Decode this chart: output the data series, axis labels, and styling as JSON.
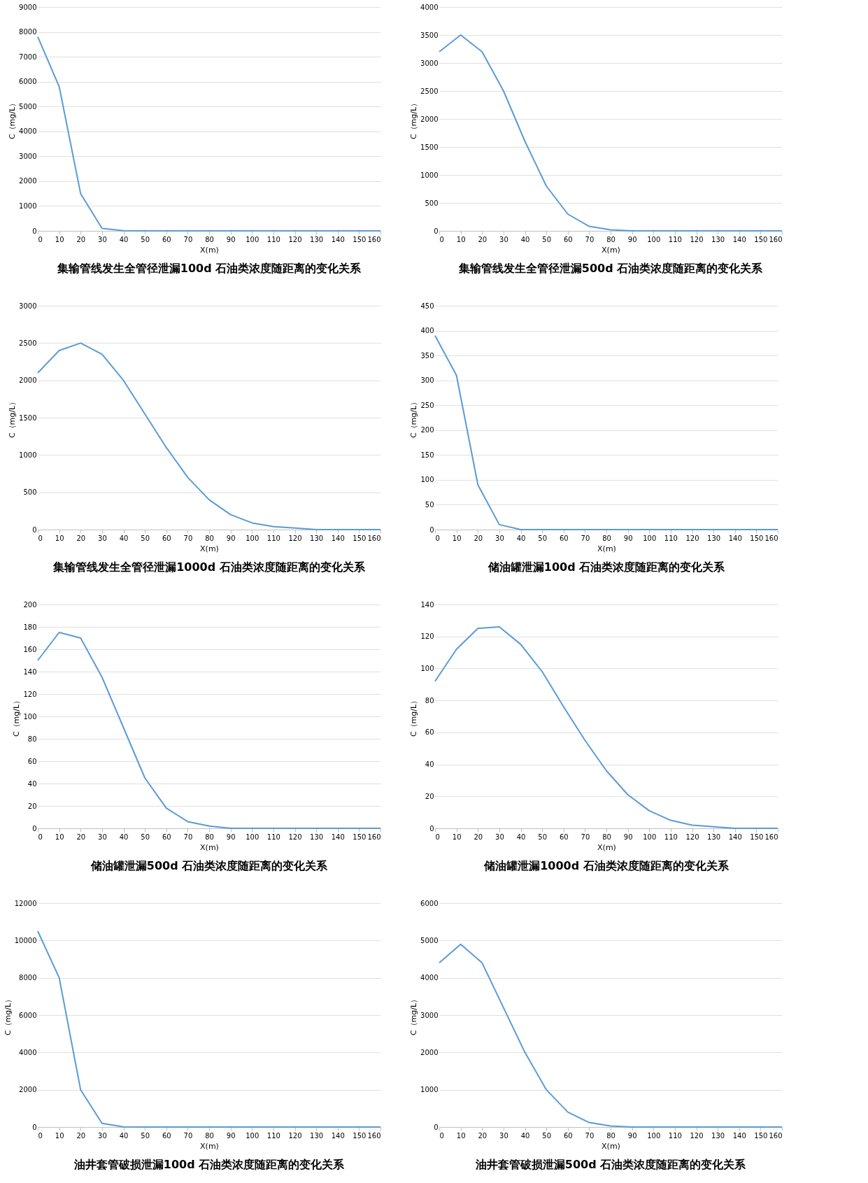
{
  "chart_data": [
    {
      "type": "line",
      "title": "集输管线发生全管径泄漏100d 石油类浓度随距离的变化关系",
      "xlabel": "X(m)",
      "ylabel": "C（mg/L）",
      "x": [
        0,
        10,
        20,
        30,
        40,
        50,
        60,
        70,
        80,
        90,
        100,
        110,
        120,
        130,
        140,
        150,
        160
      ],
      "series": [
        {
          "color": "#5b9bd5",
          "values": [
            7800,
            5800,
            1500,
            100,
            10,
            0,
            0,
            0,
            0,
            0,
            0,
            0,
            0,
            0,
            0,
            0,
            0
          ]
        }
      ],
      "xlim": [
        0,
        160
      ],
      "xticks": [
        0,
        10,
        20,
        30,
        40,
        50,
        60,
        70,
        80,
        90,
        100,
        110,
        120,
        130,
        140,
        150,
        160
      ],
      "ylim": [
        0,
        9000
      ],
      "yticks": [
        0,
        1000,
        2000,
        3000,
        4000,
        5000,
        6000,
        7000,
        8000,
        9000
      ],
      "grid": "y"
    },
    {
      "type": "line",
      "title": "集输管线发生全管径泄漏500d 石油类浓度随距离的变化关系",
      "xlabel": "X(m)",
      "ylabel": "C（mg/L）",
      "x": [
        0,
        10,
        20,
        30,
        40,
        50,
        60,
        70,
        80,
        90,
        100,
        110,
        120,
        130,
        140,
        150,
        160
      ],
      "series": [
        {
          "color": "#5b9bd5",
          "values": [
            3200,
            3500,
            3200,
            2500,
            1600,
            800,
            300,
            80,
            20,
            0,
            0,
            0,
            0,
            0,
            0,
            0,
            0
          ]
        }
      ],
      "xlim": [
        0,
        160
      ],
      "xticks": [
        0,
        10,
        20,
        30,
        40,
        50,
        60,
        70,
        80,
        90,
        100,
        110,
        120,
        130,
        140,
        150,
        160
      ],
      "ylim": [
        0,
        4000
      ],
      "yticks": [
        0,
        500,
        1000,
        1500,
        2000,
        2500,
        3000,
        3500,
        4000
      ],
      "grid": "y"
    },
    {
      "type": "line",
      "title": "集输管线发生全管径泄漏1000d 石油类浓度随距离的变化关系",
      "xlabel": "X(m)",
      "ylabel": "C（mg/L）",
      "x": [
        0,
        10,
        20,
        30,
        40,
        50,
        60,
        70,
        80,
        90,
        100,
        110,
        120,
        130,
        140,
        150,
        160
      ],
      "series": [
        {
          "color": "#5b9bd5",
          "values": [
            2100,
            2400,
            2500,
            2350,
            2000,
            1550,
            1100,
            700,
            400,
            200,
            90,
            40,
            20,
            0,
            0,
            0,
            0
          ]
        }
      ],
      "xlim": [
        0,
        160
      ],
      "xticks": [
        0,
        10,
        20,
        30,
        40,
        50,
        60,
        70,
        80,
        90,
        100,
        110,
        120,
        130,
        140,
        150,
        160
      ],
      "ylim": [
        0,
        3000
      ],
      "yticks": [
        0,
        500,
        1000,
        1500,
        2000,
        2500,
        3000
      ],
      "grid": "y"
    },
    {
      "type": "line",
      "title": "储油罐泄漏100d 石油类浓度随距离的变化关系",
      "xlabel": "X(m)",
      "ylabel": "C（mg/L）",
      "x": [
        0,
        10,
        20,
        30,
        40,
        50,
        60,
        70,
        80,
        90,
        100,
        110,
        120,
        130,
        140,
        150,
        160
      ],
      "series": [
        {
          "color": "#5b9bd5",
          "values": [
            390,
            310,
            90,
            10,
            0,
            0,
            0,
            0,
            0,
            0,
            0,
            0,
            0,
            0,
            0,
            0,
            0
          ]
        }
      ],
      "xlim": [
        0,
        160
      ],
      "xticks": [
        0,
        10,
        20,
        30,
        40,
        50,
        60,
        70,
        80,
        90,
        100,
        110,
        120,
        130,
        140,
        150,
        160
      ],
      "ylim": [
        0,
        450
      ],
      "yticks": [
        0,
        50,
        100,
        150,
        200,
        250,
        300,
        350,
        400,
        450
      ],
      "grid": "y"
    },
    {
      "type": "line",
      "title": "储油罐泄漏500d 石油类浓度随距离的变化关系",
      "xlabel": "X(m)",
      "ylabel": "C（mg/L）",
      "x": [
        0,
        10,
        20,
        30,
        40,
        50,
        60,
        70,
        80,
        90,
        100,
        110,
        120,
        130,
        140,
        150,
        160
      ],
      "series": [
        {
          "color": "#5b9bd5",
          "values": [
            150,
            175,
            170,
            135,
            90,
            45,
            18,
            6,
            2,
            0,
            0,
            0,
            0,
            0,
            0,
            0,
            0
          ]
        }
      ],
      "xlim": [
        0,
        160
      ],
      "xticks": [
        0,
        10,
        20,
        30,
        40,
        50,
        60,
        70,
        80,
        90,
        100,
        110,
        120,
        130,
        140,
        150,
        160
      ],
      "ylim": [
        0,
        200
      ],
      "yticks": [
        0,
        20,
        40,
        60,
        80,
        100,
        120,
        140,
        160,
        180,
        200
      ],
      "grid": "y"
    },
    {
      "type": "line",
      "title": "储油罐泄漏1000d 石油类浓度随距离的变化关系",
      "xlabel": "X(m)",
      "ylabel": "C（mg/L）",
      "x": [
        0,
        10,
        20,
        30,
        40,
        50,
        60,
        70,
        80,
        90,
        100,
        110,
        120,
        130,
        140,
        150,
        160
      ],
      "series": [
        {
          "color": "#5b9bd5",
          "values": [
            92,
            112,
            125,
            126,
            115,
            98,
            76,
            55,
            36,
            21,
            11,
            5,
            2,
            1,
            0,
            0,
            0
          ]
        }
      ],
      "xlim": [
        0,
        160
      ],
      "xticks": [
        0,
        10,
        20,
        30,
        40,
        50,
        60,
        70,
        80,
        90,
        100,
        110,
        120,
        130,
        140,
        150,
        160
      ],
      "ylim": [
        0,
        140
      ],
      "yticks": [
        0,
        20,
        40,
        60,
        80,
        100,
        120,
        140
      ],
      "grid": "y"
    },
    {
      "type": "line",
      "title": "油井套管破损泄漏100d 石油类浓度随距离的变化关系",
      "xlabel": "X(m)",
      "ylabel": "C（mg/L）",
      "x": [
        0,
        10,
        20,
        30,
        40,
        50,
        60,
        70,
        80,
        90,
        100,
        110,
        120,
        130,
        140,
        150,
        160
      ],
      "series": [
        {
          "color": "#5b9bd5",
          "values": [
            10500,
            8000,
            2000,
            200,
            10,
            0,
            0,
            0,
            0,
            0,
            0,
            0,
            0,
            0,
            0,
            0,
            0
          ]
        }
      ],
      "xlim": [
        0,
        160
      ],
      "xticks": [
        0,
        10,
        20,
        30,
        40,
        50,
        60,
        70,
        80,
        90,
        100,
        110,
        120,
        130,
        140,
        150,
        160
      ],
      "ylim": [
        0,
        12000
      ],
      "yticks": [
        0,
        2000,
        4000,
        6000,
        8000,
        10000,
        12000
      ],
      "grid": "y"
    },
    {
      "type": "line",
      "title": "油井套管破损泄漏500d 石油类浓度随距离的变化关系",
      "xlabel": "X(m)",
      "ylabel": "C（mg/L）",
      "x": [
        0,
        10,
        20,
        30,
        40,
        50,
        60,
        70,
        80,
        90,
        100,
        110,
        120,
        130,
        140,
        150,
        160
      ],
      "series": [
        {
          "color": "#5b9bd5",
          "values": [
            4400,
            4900,
            4400,
            3200,
            2000,
            1000,
            400,
            120,
            30,
            0,
            0,
            0,
            0,
            0,
            0,
            0,
            0
          ]
        }
      ],
      "xlim": [
        0,
        160
      ],
      "xticks": [
        0,
        10,
        20,
        30,
        40,
        50,
        60,
        70,
        80,
        90,
        100,
        110,
        120,
        130,
        140,
        150,
        160
      ],
      "ylim": [
        0,
        6000
      ],
      "yticks": [
        0,
        1000,
        2000,
        3000,
        4000,
        5000,
        6000
      ],
      "grid": "y"
    }
  ]
}
